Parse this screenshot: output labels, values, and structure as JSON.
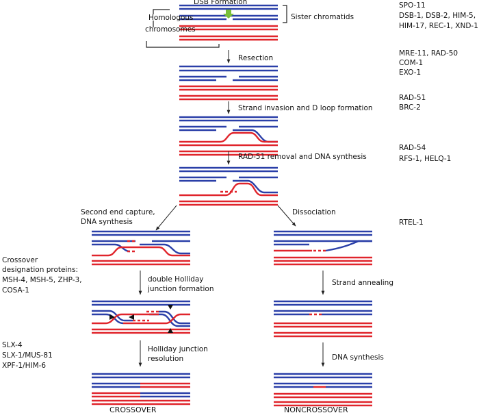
{
  "colors": {
    "blue": "#2a3fa8",
    "red": "#e0242b",
    "arrow": "#222222",
    "break_marker": "#79bf3a",
    "text": "#111111"
  },
  "top": {
    "title": "DSB Formation",
    "homologous_1": "Homologous",
    "homologous_2": "chromosomes",
    "sister": "Sister chromatids"
  },
  "steps": {
    "resection": "Resection",
    "invasion": "Strand invasion and D loop formation",
    "removal": "RAD-51 removal and DNA synthesis",
    "second_end_1": "Second end capture,",
    "second_end_2": "DNA synthesis",
    "dissociation": "Dissociation",
    "dhj_1": "double Holliday",
    "dhj_2": "junction formation",
    "resolution_1": "Holliday junction",
    "resolution_2": "resolution",
    "annealing": "Strand annealing",
    "synthesis": "DNA synthesis"
  },
  "proteins": {
    "spo": "SPO-11",
    "dsb_1": "DSB-1, DSB-2, HIM-5,",
    "dsb_2": "HIM-17, REC-1, XND-1",
    "mre": "MRE-11, RAD-50",
    "com": "COM-1",
    "exo": "EXO-1",
    "rad51": "RAD-51",
    "brc": "BRC-2",
    "rad54": "RAD-54",
    "rfs": "RFS-1, HELQ-1",
    "rtel": "RTEL-1",
    "crossover_designation_1": "Crossover",
    "crossover_designation_2": "designation proteins:",
    "msh": "MSH-4, MSH-5, ZHP-3,",
    "cosa": "COSA-1",
    "slx4": "SLX-4",
    "slx1": "SLX-1/MUS-81",
    "xpf": "XPF-1/HIM-6"
  },
  "outcomes": {
    "crossover": "CROSSOVER",
    "noncrossover": "NONCROSSOVER"
  }
}
